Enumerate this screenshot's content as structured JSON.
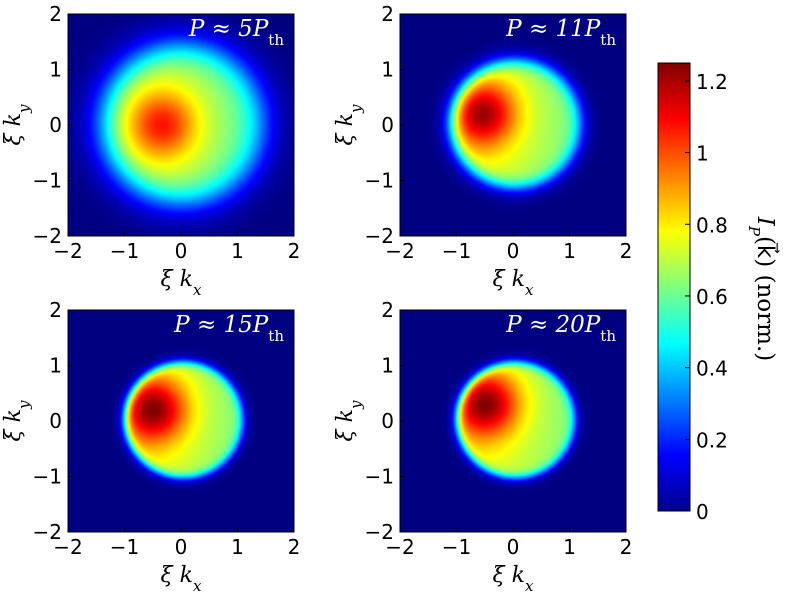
{
  "chart_data": [
    {
      "type": "heatmap",
      "title": "P ≈ 5P_th",
      "title_display": "P ≈ 5Pth",
      "xlabel": "ξ k_x",
      "ylabel": "ξ k_y",
      "xlim": [
        -2,
        2
      ],
      "ylim": [
        -2,
        2
      ],
      "xticks": [
        -2,
        -1,
        0,
        1,
        2
      ],
      "yticks": [
        -2,
        -1,
        0,
        1,
        2
      ],
      "colormap": "jet",
      "distribution": {
        "shape": "broad smooth blob",
        "center": [
          -0.35,
          0.0
        ],
        "radius": 1.4,
        "edge_softness": 0.55,
        "peak_value": 1.08
      }
    },
    {
      "type": "heatmap",
      "title": "P ≈ 11P_th",
      "title_display": "P ≈ 11Pth",
      "xlabel": "ξ k_x",
      "ylabel": "ξ k_y",
      "xlim": [
        -2,
        2
      ],
      "ylim": [
        -2,
        2
      ],
      "xticks": [
        -2,
        -1,
        0,
        1,
        2
      ],
      "yticks": [
        -2,
        -1,
        0,
        1,
        2
      ],
      "colormap": "jet",
      "distribution": {
        "shape": "disc with hot spot on left",
        "center": [
          -0.55,
          0.2
        ],
        "radius": 1.15,
        "edge_softness": 0.25,
        "peak_value": 1.22
      }
    },
    {
      "type": "heatmap",
      "title": "P ≈ 15P_th",
      "title_display": "P ≈ 15Pth",
      "xlabel": "ξ k_x",
      "ylabel": "ξ k_y",
      "xlim": [
        -2,
        2
      ],
      "ylim": [
        -2,
        2
      ],
      "xticks": [
        -2,
        -1,
        0,
        1,
        2
      ],
      "yticks": [
        -2,
        -1,
        0,
        1,
        2
      ],
      "colormap": "jet",
      "distribution": {
        "shape": "sharp-edged disc with hot spot on left",
        "center": [
          -0.5,
          0.2
        ],
        "radius": 1.05,
        "edge_softness": 0.15,
        "peak_value": 1.25
      }
    },
    {
      "type": "heatmap",
      "title": "P ≈ 20P_th",
      "title_display": "P ≈ 20Pth",
      "xlabel": "ξ k_x",
      "ylabel": "ξ k_y",
      "xlim": [
        -2,
        2
      ],
      "ylim": [
        -2,
        2
      ],
      "xticks": [
        -2,
        -1,
        0,
        1,
        2
      ],
      "yticks": [
        -2,
        -1,
        0,
        1,
        2
      ],
      "colormap": "jet",
      "distribution": {
        "shape": "sharp-edged disc with hot spot on left",
        "center": [
          -0.5,
          0.3
        ],
        "radius": 1.05,
        "edge_softness": 0.15,
        "peak_value": 1.25
      }
    }
  ],
  "colorbar": {
    "label": "I_P(k⃗) (norm.)",
    "label_display": "IP(k⃗) (norm.)",
    "range": [
      0,
      1.25
    ],
    "ticks": [
      0,
      0.2,
      0.4,
      0.6,
      0.8,
      1,
      1.2
    ],
    "colormap": "jet"
  }
}
